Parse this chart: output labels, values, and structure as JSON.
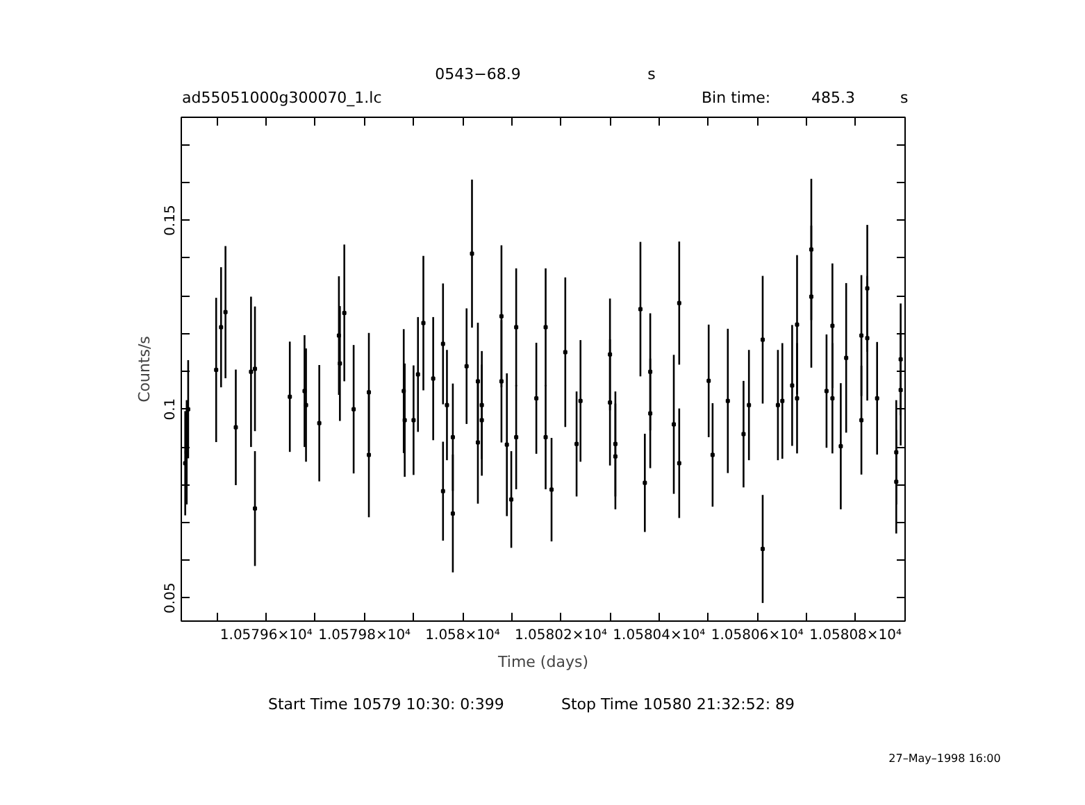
{
  "chart_data": {
    "type": "scatter",
    "title": "0543−68.9",
    "subtitle": "ad55051000g300070_1.lc",
    "xlabel": "Time (days)",
    "ylabel": "Counts/s",
    "annotations": [
      "s",
      "Bin time:",
      "485.3",
      "s",
      "Start Time 10579 10:30: 0:399",
      "Stop Time 10580 21:32:52: 89",
      "27–May–1998 16:00"
    ],
    "xlim": [
      10579.427,
      10580.901
    ],
    "ylim": [
      0.0439,
      0.1773
    ],
    "xticks": [
      {
        "value": 10579.5,
        "label": null
      },
      {
        "value": 10579.6,
        "label": "1.05796×10⁴"
      },
      {
        "value": 10579.7,
        "label": null
      },
      {
        "value": 10579.8,
        "label": "1.05798×10⁴"
      },
      {
        "value": 10579.9,
        "label": null
      },
      {
        "value": 10580.0,
        "label": "1.058×10⁴"
      },
      {
        "value": 10580.1,
        "label": null
      },
      {
        "value": 10580.2,
        "label": "1.05802×10⁴"
      },
      {
        "value": 10580.3,
        "label": null
      },
      {
        "value": 10580.4,
        "label": "1.05804×10⁴"
      },
      {
        "value": 10580.5,
        "label": null
      },
      {
        "value": 10580.6,
        "label": "1.05806×10⁴"
      },
      {
        "value": 10580.7,
        "label": null
      },
      {
        "value": 10580.8,
        "label": "1.05808×10⁴"
      }
    ],
    "yticks": [
      {
        "value": 0.05,
        "label": "0.05"
      },
      {
        "value": 0.06,
        "label": null
      },
      {
        "value": 0.07,
        "label": null
      },
      {
        "value": 0.08,
        "label": null
      },
      {
        "value": 0.09,
        "label": null
      },
      {
        "value": 0.1,
        "label": "0.1"
      },
      {
        "value": 0.11,
        "label": null
      },
      {
        "value": 0.12,
        "label": null
      },
      {
        "value": 0.13,
        "label": null
      },
      {
        "value": 0.14,
        "label": null
      },
      {
        "value": 0.15,
        "label": "0.15"
      },
      {
        "value": 0.16,
        "label": null
      },
      {
        "value": 0.17,
        "label": null
      }
    ],
    "marker": "square",
    "grid": false,
    "series": [
      {
        "color": "#000000",
        "x": [
          10579.435,
          10579.438,
          10579.441,
          10579.498,
          10579.508,
          10579.517,
          10579.538,
          10579.569,
          10579.577,
          10579.577,
          10579.648,
          10579.678,
          10579.681,
          10579.708,
          10579.748,
          10579.75,
          10579.759,
          10579.778,
          10579.809,
          10579.809,
          10579.88,
          10579.882,
          10579.9,
          10579.909,
          10579.92,
          10579.94,
          10579.96,
          10579.96,
          10579.968,
          10579.98,
          10579.98,
          10580.008,
          10580.019,
          10580.031,
          10580.031,
          10580.039,
          10580.039,
          10580.079,
          10580.079,
          10580.09,
          10580.099,
          10580.109,
          10580.109,
          10580.15,
          10580.169,
          10580.169,
          10580.181,
          10580.209,
          10580.232,
          10580.24,
          10580.3,
          10580.3,
          10580.311,
          10580.311,
          10580.362,
          10580.371,
          10580.382,
          10580.382,
          10580.43,
          10580.441,
          10580.441,
          10580.501,
          10580.509,
          10580.54,
          10580.572,
          10580.583,
          10580.611,
          10580.611,
          10580.642,
          10580.651,
          10580.671,
          10580.681,
          10580.681,
          10580.71,
          10580.71,
          10580.741,
          10580.753,
          10580.753,
          10580.77,
          10580.781,
          10580.812,
          10580.812,
          10580.824,
          10580.824,
          10580.844,
          10580.883,
          10580.883,
          10580.892,
          10580.892
        ],
        "values": [
          0.0857,
          0.0886,
          0.1,
          0.1104,
          0.1217,
          0.1257,
          0.0952,
          0.1099,
          0.1107,
          0.0737,
          0.1033,
          0.1048,
          0.1011,
          0.0963,
          0.1195,
          0.1121,
          0.1255,
          0.1,
          0.1045,
          0.0879,
          0.1048,
          0.0971,
          0.0971,
          0.1092,
          0.1228,
          0.1081,
          0.1173,
          0.0783,
          0.1011,
          0.0926,
          0.0724,
          0.1114,
          0.1412,
          0.1074,
          0.0912,
          0.1011,
          0.0971,
          0.1246,
          0.1074,
          0.0906,
          0.0761,
          0.1217,
          0.0926,
          0.1029,
          0.1217,
          0.0926,
          0.0787,
          0.1151,
          0.0908,
          0.1022,
          0.1145,
          0.1018,
          0.0908,
          0.0875,
          0.1265,
          0.0805,
          0.1099,
          0.0989,
          0.096,
          0.1281,
          0.0857,
          0.1075,
          0.0879,
          0.1022,
          0.0934,
          0.1011,
          0.1184,
          0.063,
          0.1011,
          0.1022,
          0.1063,
          0.1224,
          0.1029,
          0.1423,
          0.1298,
          0.1048,
          0.1221,
          0.1029,
          0.0902,
          0.1136,
          0.1195,
          0.0971,
          0.132,
          0.1188,
          0.1029,
          0.0886,
          0.0808,
          0.1132,
          0.1051
        ],
        "errors": [
          0.0138,
          0.0138,
          0.013,
          0.0191,
          0.0159,
          0.0175,
          0.0153,
          0.0199,
          0.0165,
          0.0152,
          0.0146,
          0.0148,
          0.015,
          0.0154,
          0.0157,
          0.0152,
          0.0181,
          0.017,
          0.0157,
          0.0165,
          0.0164,
          0.015,
          0.0145,
          0.0152,
          0.0178,
          0.0163,
          0.016,
          0.0131,
          0.0146,
          0.0142,
          0.0156,
          0.0153,
          0.0196,
          0.0155,
          0.0162,
          0.0143,
          0.0147,
          0.0188,
          0.0162,
          0.0189,
          0.0128,
          0.0156,
          0.0138,
          0.0147,
          0.0156,
          0.0138,
          0.0137,
          0.0198,
          0.0139,
          0.0161,
          0.0148,
          0.0167,
          0.0139,
          0.014,
          0.0178,
          0.013,
          0.0155,
          0.0145,
          0.0184,
          0.0163,
          0.0145,
          0.0149,
          0.0137,
          0.0191,
          0.0141,
          0.0146,
          0.0169,
          0.0143,
          0.0146,
          0.0153,
          0.016,
          0.0184,
          0.0146,
          0.0187,
          0.0188,
          0.015,
          0.0165,
          0.0146,
          0.0167,
          0.0198,
          0.016,
          0.0144,
          0.0168,
          0.0165,
          0.0149,
          0.0138,
          0.0137,
          0.0148,
          0.0147
        ],
        "xerrors": [
          0.0028,
          0.0028,
          0.0028,
          0.0028,
          0.0028,
          0.0028,
          0.0028,
          0.0028,
          0.0028,
          0.0028,
          0.0028,
          0.0028,
          0.0028,
          0.0028,
          0.0028,
          0.0028,
          0.0028,
          0.0028,
          0.0028,
          0.0028,
          0.0028,
          0.0028,
          0.0028,
          0.0028,
          0.0028,
          0.0028,
          0.0028,
          0.0028,
          0.0028,
          0.0028,
          0.0028,
          0.0028,
          0.0028,
          0.0028,
          0.0028,
          0.0028,
          0.0028,
          0.0028,
          0.0028,
          0.0028,
          0.0028,
          0.0028,
          0.0028,
          0.0028,
          0.0028,
          0.0028,
          0.0028,
          0.0028,
          0.0028,
          0.0028,
          0.0028,
          0.0028,
          0.0028,
          0.0028,
          0.0028,
          0.0028,
          0.0028,
          0.0028,
          0.0028,
          0.0028,
          0.0028,
          0.0028,
          0.0028,
          0.0028,
          0.0028,
          0.0028,
          0.0028,
          0.0028,
          0.0028,
          0.0028,
          0.0028,
          0.0028,
          0.0028,
          0.0028,
          0.0028,
          0.0028,
          0.0028,
          0.0028,
          0.0028,
          0.0028,
          0.0028,
          0.0028,
          0.0028,
          0.0028,
          0.0028,
          0.0028,
          0.0028,
          0.0028,
          0.0028
        ]
      }
    ]
  }
}
